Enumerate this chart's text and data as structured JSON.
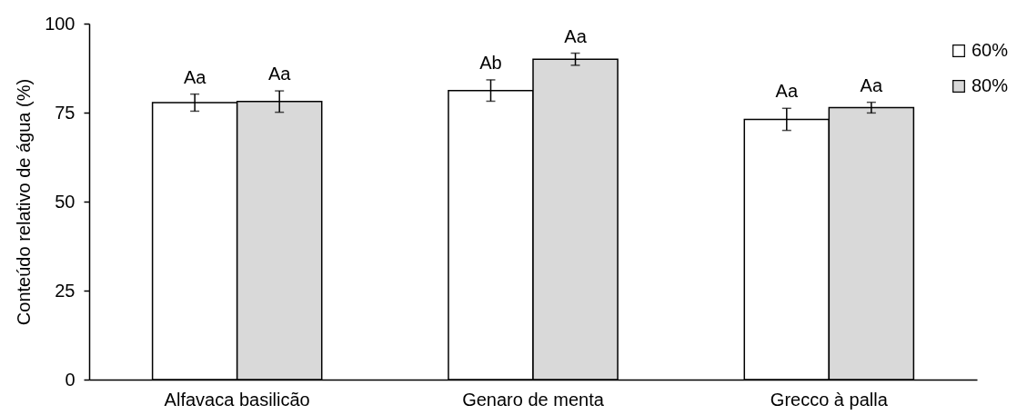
{
  "chart_data": {
    "type": "bar",
    "ylabel": "Conteúdo relativo de água (%)",
    "categories": [
      "Alfavaca basilicão",
      "Genaro de menta",
      "Grecco à palla"
    ],
    "series": [
      {
        "name": "60%",
        "color": "#ffffff",
        "values": [
          77.8,
          81.2,
          73.1
        ],
        "errors": [
          2.4,
          3.0,
          3.1
        ],
        "value_labels": [
          "Aa",
          "Ab",
          "Aa"
        ]
      },
      {
        "name": "80%",
        "color": "#d9d9d9",
        "values": [
          78.1,
          90.0,
          76.4
        ],
        "errors": [
          3.0,
          1.7,
          1.5
        ],
        "value_labels": [
          "Aa",
          "Aa",
          "Aa"
        ]
      }
    ],
    "ylim": [
      0,
      100
    ],
    "yticks": [
      0,
      25,
      50,
      75,
      100
    ],
    "legend": "top right"
  }
}
